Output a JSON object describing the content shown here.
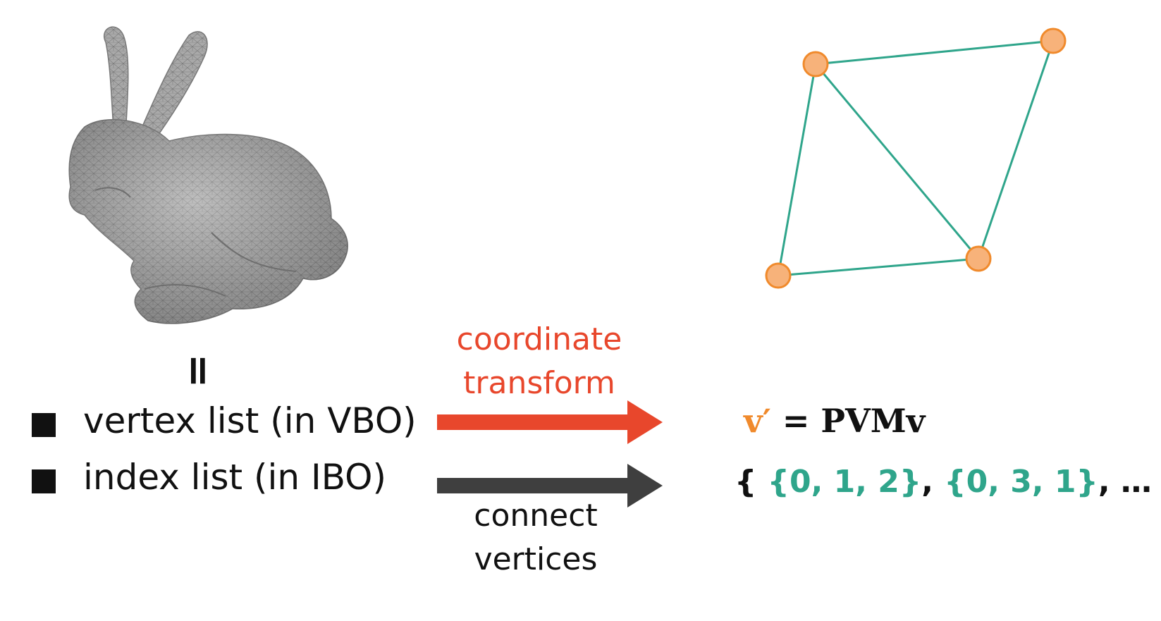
{
  "colors": {
    "red": "#e8472c",
    "dark": "#3f3f3f",
    "teal": "#2fa58b",
    "orange": "#f08a2c",
    "vertex_fill": "#f7b27a",
    "mesh": "#8c8c8c"
  },
  "icons": {
    "mesh_model": "bunny-mesh-icon",
    "bullet": "square-bullet-icon"
  },
  "equals_sign": "=",
  "bullets": [
    "vertex list (in VBO)",
    "index list (in IBO)"
  ],
  "arrows": {
    "top_label_lines": [
      "coordinate",
      "transform"
    ],
    "bottom_label_lines": [
      "connect",
      "vertices"
    ]
  },
  "formula": {
    "lhs": "v′",
    "rest": " = PVMv"
  },
  "indices": {
    "open": "{ ",
    "groups": [
      "{0, 1, 2}",
      "{0, 3, 1}"
    ],
    "separator": ", ",
    "tail": ", … }"
  }
}
